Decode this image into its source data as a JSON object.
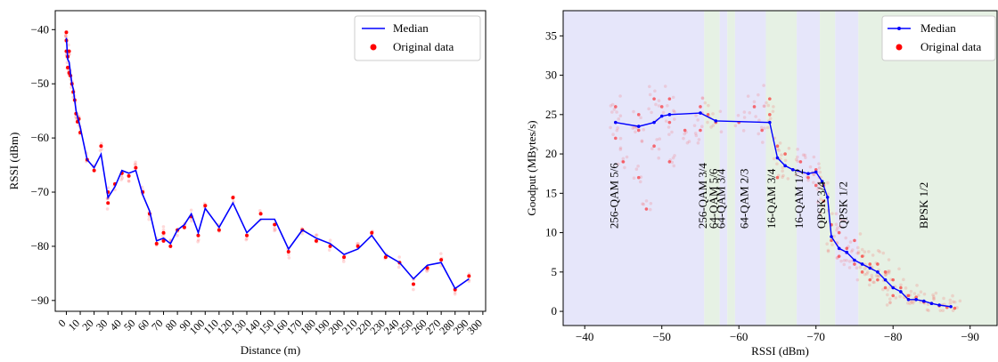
{
  "chart_data": [
    {
      "type": "line",
      "xlabel": "Distance (m)",
      "ylabel": "RSSI (dBm)",
      "xlim": [
        -8,
        302
      ],
      "ylim": [
        -92,
        -36.5
      ],
      "xticks": [
        0,
        10,
        20,
        30,
        40,
        50,
        60,
        70,
        80,
        90,
        100,
        110,
        120,
        130,
        140,
        150,
        160,
        170,
        180,
        190,
        200,
        210,
        220,
        230,
        240,
        250,
        260,
        270,
        280,
        290,
        300
      ],
      "yticks": [
        -40,
        -50,
        -60,
        -70,
        -80,
        -90
      ],
      "legend_position": "top-right",
      "colors": {
        "median": "#0000ff",
        "data": "#ff0000"
      },
      "series": [
        {
          "name": "Median",
          "x": [
            0,
            1,
            2,
            3,
            4,
            5,
            6,
            7,
            8,
            9,
            10,
            15,
            20,
            25,
            30,
            35,
            40,
            45,
            50,
            55,
            60,
            65,
            70,
            75,
            80,
            85,
            90,
            95,
            100,
            110,
            120,
            130,
            140,
            150,
            160,
            170,
            180,
            190,
            200,
            210,
            220,
            230,
            240,
            250,
            260,
            270,
            280,
            290
          ],
          "y": [
            -41.5,
            -45.5,
            -46,
            -48,
            -50,
            -51,
            -53,
            -55,
            -56,
            -57,
            -58,
            -64,
            -65.5,
            -63,
            -71,
            -69,
            -66,
            -66.5,
            -66,
            -70.5,
            -73.5,
            -79,
            -78.5,
            -79.5,
            -77,
            -76,
            -74,
            -77.5,
            -73,
            -76.5,
            -72,
            -77.5,
            -75,
            -75,
            -80.5,
            -77,
            -78.5,
            -79.5,
            -81.5,
            -80.5,
            -78,
            -81.5,
            -83,
            -86,
            -83.5,
            -83,
            -87.8,
            -86
          ]
        },
        {
          "name": "Original data",
          "x": [
            0,
            0,
            0,
            1,
            1,
            2,
            2,
            3,
            4,
            5,
            6,
            7,
            8,
            9,
            10,
            15,
            20,
            25,
            30,
            30,
            35,
            40,
            45,
            50,
            55,
            60,
            65,
            70,
            70,
            75,
            80,
            85,
            90,
            95,
            100,
            110,
            120,
            130,
            140,
            150,
            160,
            170,
            180,
            190,
            200,
            210,
            220,
            230,
            240,
            250,
            260,
            270,
            280,
            290
          ],
          "y": [
            -40.5,
            -42,
            -44,
            -45,
            -47,
            -44,
            -48,
            -48.5,
            -50,
            -51.5,
            -53,
            -55.5,
            -57,
            -56.5,
            -59,
            -64,
            -66,
            -61.5,
            -72,
            -70,
            -68.5,
            -66.5,
            -67,
            -65.5,
            -70,
            -74,
            -79.5,
            -79,
            -77.5,
            -80,
            -77,
            -76.5,
            -74.5,
            -78,
            -72.5,
            -77,
            -71,
            -78,
            -74,
            -76,
            -81,
            -77,
            -79,
            -80,
            -82,
            -80,
            -77.5,
            -82,
            -83,
            -87,
            -84,
            -82.5,
            -88,
            -85.5
          ]
        }
      ]
    },
    {
      "type": "scatter",
      "xlabel": "RSSI (dBm)",
      "ylabel": "Goodput (MBytes/s)",
      "xlim": [
        -37.2,
        -93.5
      ],
      "ylim": [
        -1.8,
        38.2
      ],
      "x_axis_inverted": true,
      "xticks": [
        -40,
        -50,
        -60,
        -70,
        -80,
        -90
      ],
      "yticks": [
        0,
        5,
        10,
        15,
        20,
        25,
        30,
        35
      ],
      "legend_position": "top-right",
      "colors": {
        "median": "#0000ff",
        "data": "#ff0000",
        "band_blue": "#e6e6fa",
        "band_green": "#e6f1e4"
      },
      "bands": [
        {
          "label": "256-QAM 5/6",
          "from": -37.2,
          "to": -55.5,
          "color": "blue"
        },
        {
          "label": "256-QAM 3/4",
          "from": -55.5,
          "to": -57.5,
          "color": "green"
        },
        {
          "label": "64-QAM 5/6",
          "from": -57.5,
          "to": -58.5,
          "color": "blue"
        },
        {
          "label": "64-QAM 3/4",
          "from": -58.5,
          "to": -59.5,
          "color": "green"
        },
        {
          "label": "64-QAM 2/3",
          "from": -59.5,
          "to": -63.5,
          "color": "blue"
        },
        {
          "label": "16-QAM 3/4",
          "from": -63.5,
          "to": -67.5,
          "color": "green"
        },
        {
          "label": "16-QAM 1/2",
          "from": -67.5,
          "to": -70.5,
          "color": "blue"
        },
        {
          "label": "QPSK 3/4",
          "from": -70.5,
          "to": -72.5,
          "color": "green"
        },
        {
          "label": "QPSK 1/2",
          "from": -72.5,
          "to": -75.5,
          "color": "blue"
        },
        {
          "label": "BPSK 1/2",
          "from": -75.5,
          "to": -93.5,
          "color": "green"
        }
      ],
      "series": [
        {
          "name": "Median",
          "x": [
            -44,
            -47,
            -49,
            -50,
            -51,
            -55,
            -57,
            -64,
            -65,
            -66,
            -67,
            -69,
            -70,
            -70.8,
            -71.5,
            -72,
            -73,
            -74,
            -75,
            -76,
            -77,
            -78,
            -79,
            -80,
            -81,
            -82,
            -83,
            -84,
            -85,
            -86,
            -87.5
          ],
          "y": [
            24,
            23.5,
            24,
            24.8,
            25,
            25.2,
            24.2,
            24,
            19.5,
            18.5,
            18,
            17.5,
            17.7,
            16.5,
            14.5,
            9.5,
            8,
            7.5,
            6.5,
            6,
            5.5,
            5,
            4,
            3,
            2.5,
            1.5,
            1.5,
            1.3,
            1,
            0.8,
            0.6
          ]
        },
        {
          "name": "Original data",
          "x": [
            -44,
            -44,
            -44,
            -45,
            -47,
            -47,
            -47,
            -48,
            -49,
            -49,
            -50,
            -51,
            -51,
            -51,
            -53,
            -55,
            -55,
            -56,
            -57,
            -60,
            -62,
            -63,
            -64,
            -64,
            -65,
            -65,
            -66,
            -67,
            -68,
            -69,
            -70,
            -70,
            -71,
            -71,
            -72,
            -72,
            -73,
            -73,
            -74,
            -75,
            -75,
            -76,
            -76,
            -77,
            -77,
            -78,
            -78,
            -79,
            -79,
            -80,
            -80,
            -81,
            -82,
            -82,
            -83,
            -84,
            -85,
            -86,
            -87,
            -88
          ],
          "y": [
            26,
            24,
            22,
            19,
            25,
            23,
            17,
            13,
            27,
            21,
            26,
            27,
            24,
            19,
            23,
            26,
            23,
            25,
            24,
            24,
            26,
            23,
            25,
            27,
            21,
            17,
            20,
            18,
            19,
            17,
            18,
            16,
            16,
            14,
            11,
            9,
            10,
            7,
            8,
            9,
            6,
            7,
            5,
            6,
            4,
            6,
            4,
            5,
            3,
            4,
            2,
            3,
            2,
            1.5,
            1.8,
            1.2,
            1,
            0.7,
            0.5,
            0.4
          ]
        }
      ]
    }
  ]
}
